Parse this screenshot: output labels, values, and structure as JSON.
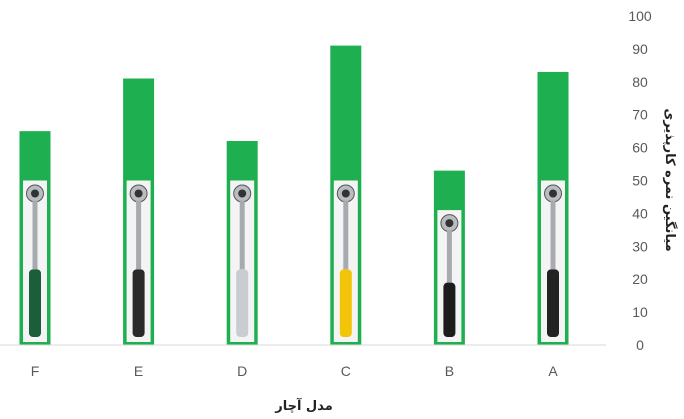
{
  "chart_data": {
    "type": "bar",
    "title": "",
    "xlabel": "مدل آچار",
    "ylabel": "میانگین نمره کارپذیری",
    "categories": [
      "F",
      "E",
      "D",
      "C",
      "B",
      "A"
    ],
    "values": [
      65,
      81,
      62,
      91,
      53,
      83
    ],
    "ylim": [
      0,
      100
    ],
    "yticks": [
      0,
      10,
      20,
      30,
      40,
      50,
      60,
      70,
      80,
      90,
      100
    ],
    "y_axis_side": "right",
    "grid": false,
    "legend": "none",
    "bar_color": "#1eb050",
    "bar_images": [
      {
        "category": "F",
        "icon": "ratchet-wrench-green-handle-icon",
        "handle_color": "#1d5e3a"
      },
      {
        "category": "E",
        "icon": "ratchet-wrench-black-handle-icon",
        "handle_color": "#2a2a2a"
      },
      {
        "category": "D",
        "icon": "ratchet-wrench-chrome-handle-icon",
        "handle_color": "#c9ccd0"
      },
      {
        "category": "C",
        "icon": "ratchet-wrench-yellow-black-handle-icon",
        "handle_color": "#f2c40a"
      },
      {
        "category": "B",
        "icon": "ratchet-wrench-black-grip-icon",
        "handle_color": "#1c1c1c"
      },
      {
        "category": "A",
        "icon": "ratchet-wrench-chrome-black-grip-icon",
        "handle_color": "#222222"
      }
    ]
  }
}
